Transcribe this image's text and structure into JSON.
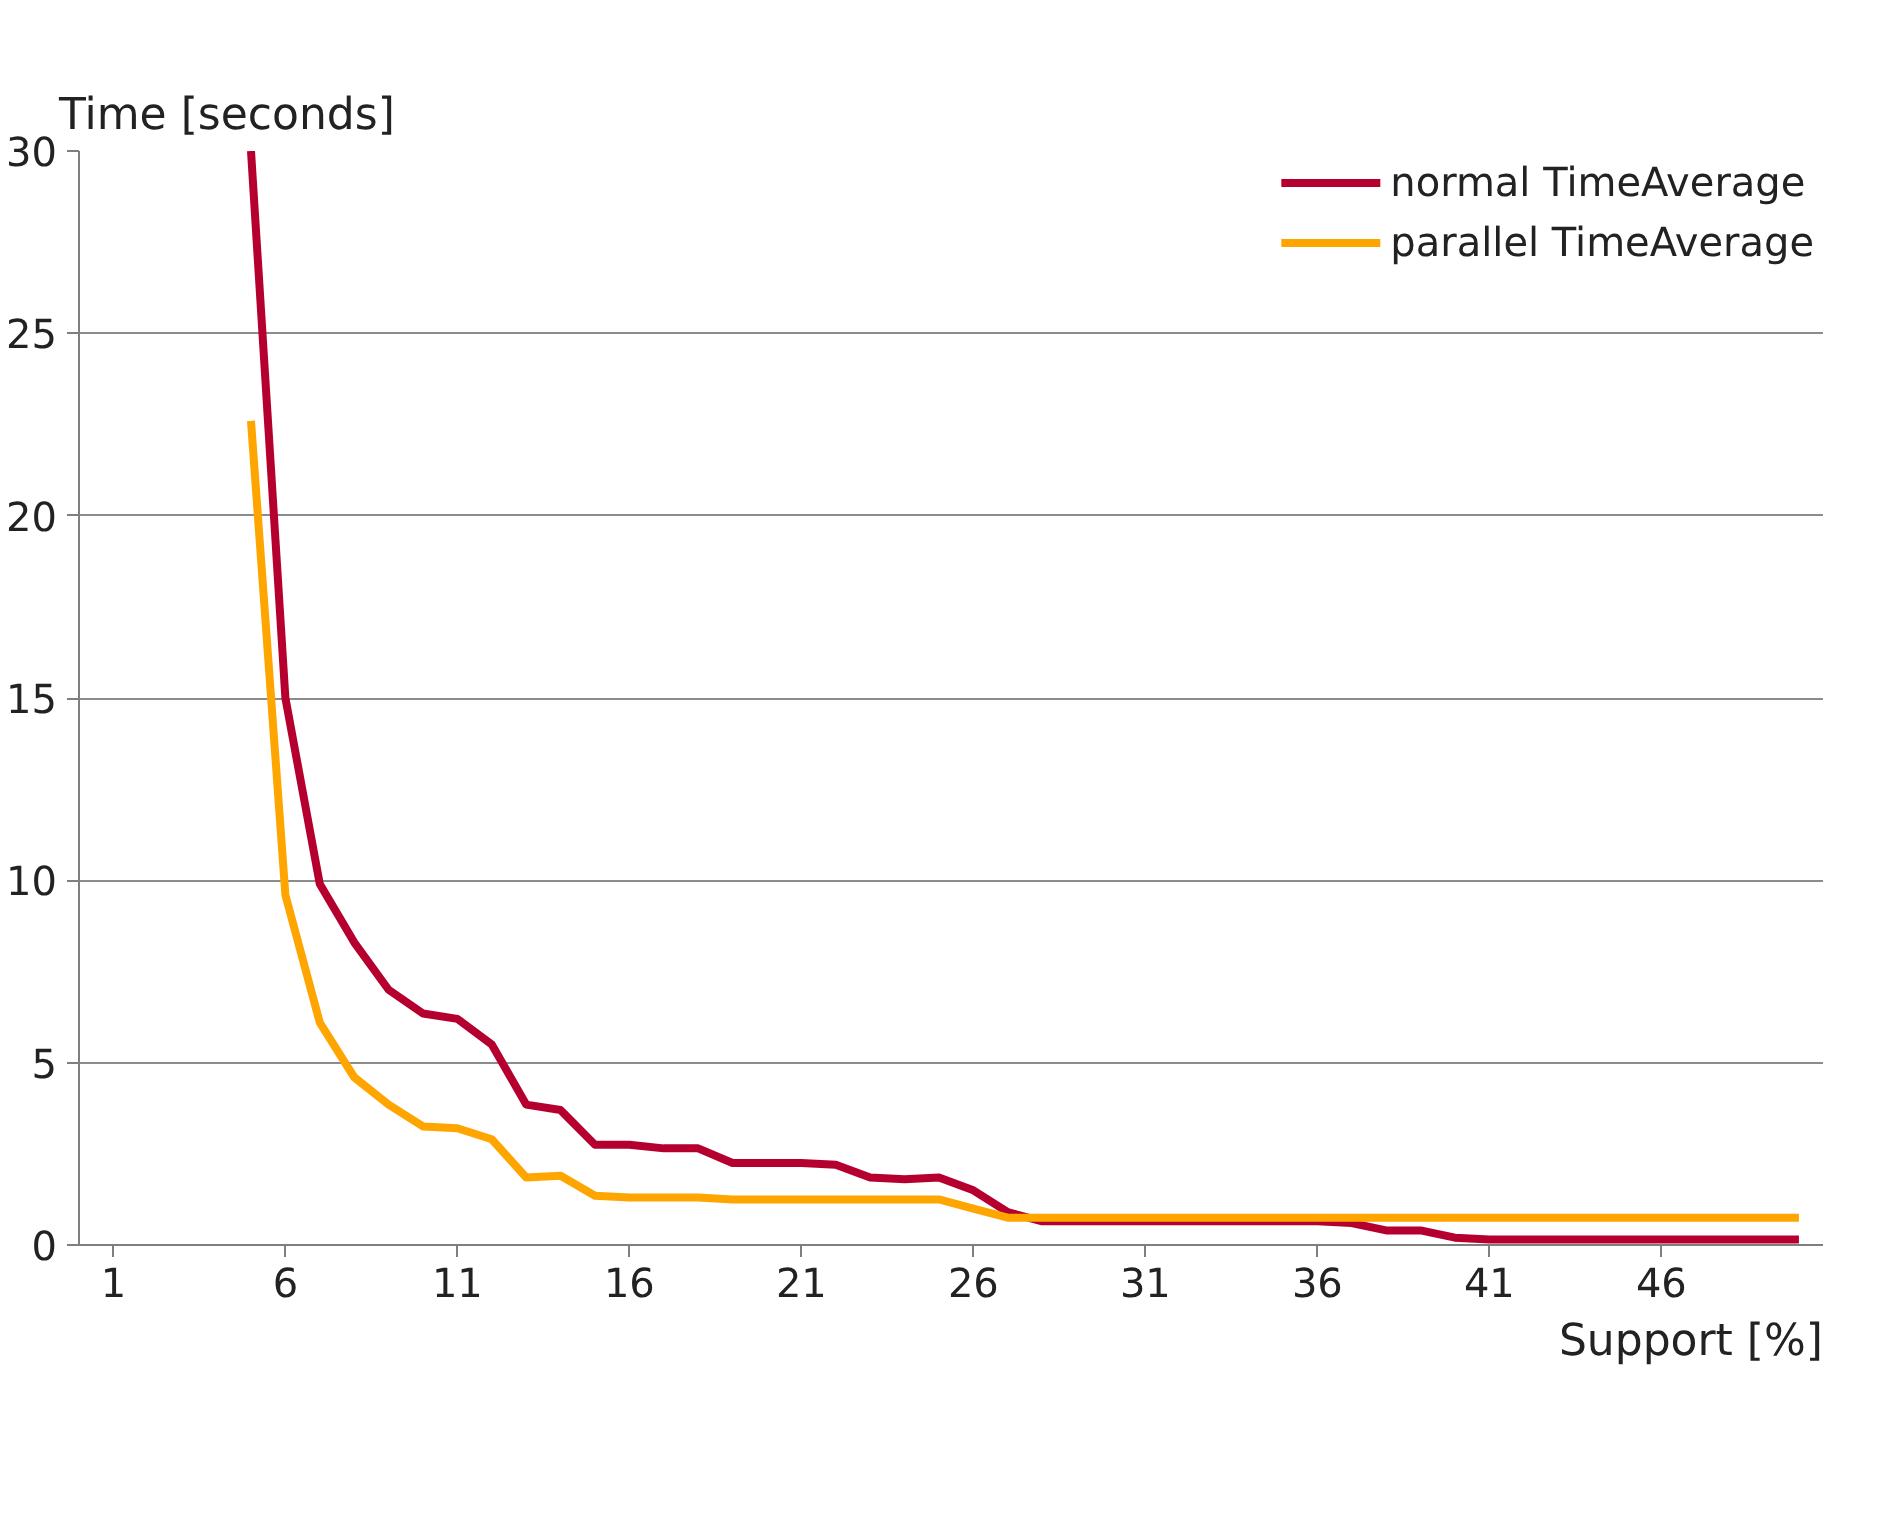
{
  "chart_data": {
    "type": "line",
    "ylabel": "Time [seconds]",
    "xlabel": "Support [%]",
    "xlim": [
      0,
      50.7
    ],
    "xticks": [
      1,
      6,
      11,
      16,
      21,
      26,
      31,
      36,
      41,
      46
    ],
    "ylim": [
      0,
      30
    ],
    "yticks": [
      0,
      5,
      10,
      15,
      20,
      25,
      30
    ],
    "grid": "y",
    "legend": "top right",
    "marker": "none",
    "line_style": "solid",
    "series": [
      {
        "name": "normal TimeAverage",
        "color": "#b5002f",
        "x": [
          5,
          6,
          7,
          8,
          9,
          10,
          11,
          12,
          13,
          14,
          15,
          16,
          17,
          18,
          19,
          20,
          21,
          22,
          23,
          24,
          25,
          26,
          27,
          28,
          29,
          30,
          31,
          32,
          33,
          34,
          35,
          36,
          37,
          38,
          39,
          40,
          41,
          42,
          43,
          44,
          45,
          46,
          47,
          48,
          49,
          50
        ],
        "values": [
          30,
          15,
          9.9,
          8.3,
          7.0,
          6.35,
          6.2,
          5.5,
          3.85,
          3.7,
          2.75,
          2.75,
          2.65,
          2.65,
          2.25,
          2.25,
          2.25,
          2.2,
          1.85,
          1.8,
          1.85,
          1.5,
          0.9,
          0.65,
          0.65,
          0.65,
          0.65,
          0.65,
          0.65,
          0.65,
          0.65,
          0.65,
          0.6,
          0.4,
          0.4,
          0.2,
          0.15,
          0.15,
          0.15,
          0.15,
          0.15,
          0.15,
          0.15,
          0.15,
          0.15,
          0.15
        ]
      },
      {
        "name": "parallel TimeAverage",
        "color": "#ffa500",
        "x": [
          5,
          6,
          7,
          8,
          9,
          10,
          11,
          12,
          13,
          14,
          15,
          16,
          17,
          18,
          19,
          20,
          21,
          22,
          23,
          24,
          25,
          26,
          27,
          28,
          29,
          30,
          31,
          32,
          33,
          34,
          35,
          36,
          37,
          38,
          39,
          40,
          41,
          42,
          43,
          44,
          45,
          46,
          47,
          48,
          49,
          50
        ],
        "values": [
          22.6,
          9.6,
          6.1,
          4.6,
          3.85,
          3.25,
          3.2,
          2.9,
          1.85,
          1.9,
          1.35,
          1.3,
          1.3,
          1.3,
          1.25,
          1.25,
          1.25,
          1.25,
          1.25,
          1.25,
          1.25,
          1.0,
          0.75,
          0.75,
          0.75,
          0.75,
          0.75,
          0.75,
          0.75,
          0.75,
          0.75,
          0.75,
          0.75,
          0.75,
          0.75,
          0.75,
          0.75,
          0.75,
          0.75,
          0.75,
          0.75,
          0.75,
          0.75,
          0.75,
          0.75,
          0.75
        ]
      }
    ]
  }
}
